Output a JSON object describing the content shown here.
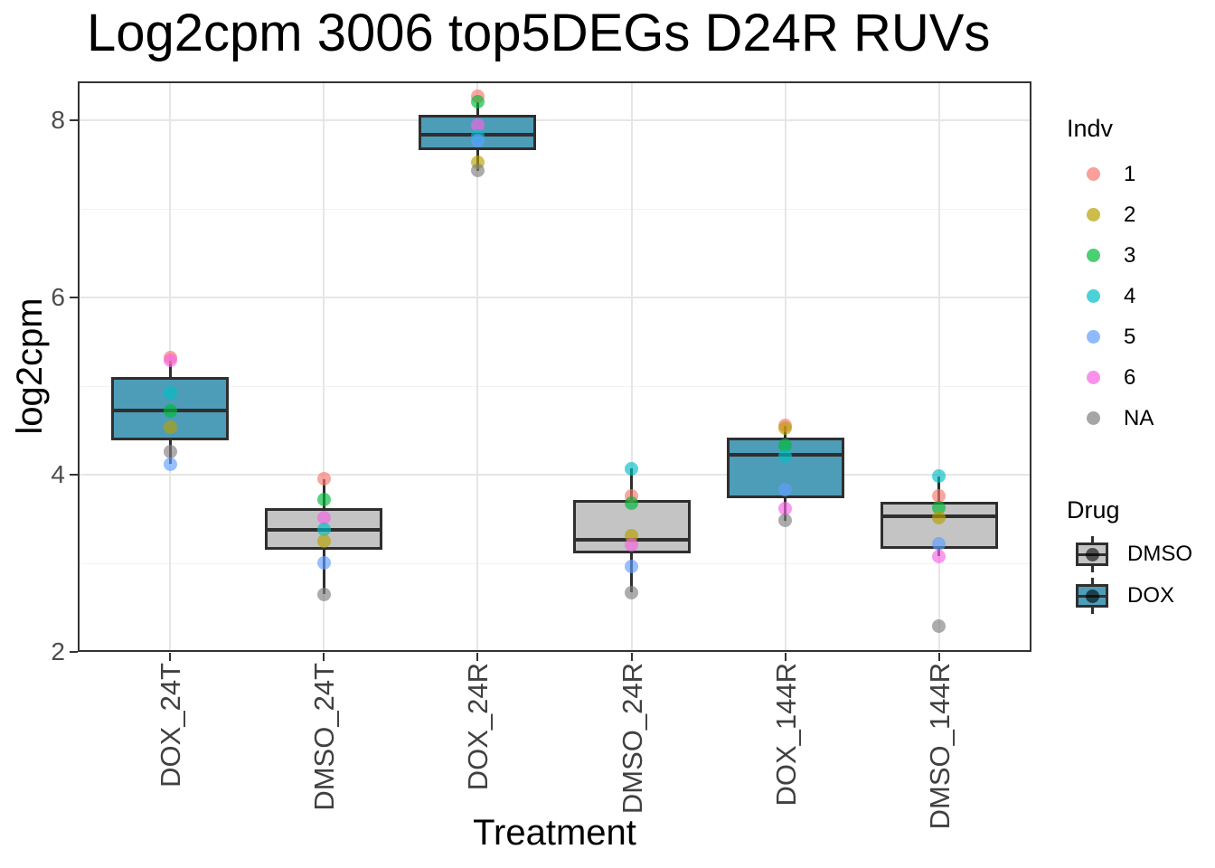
{
  "chart_data": {
    "type": "boxplot",
    "title": "Log2cpm 3006 top5DEGs D24R RUVs",
    "xlabel": "Treatment",
    "ylabel": "log2cpm",
    "y_ticks": [
      2,
      4,
      6,
      8
    ],
    "y_minor_ticks": [
      3,
      5,
      7
    ],
    "y_domain": [
      2.0,
      8.44
    ],
    "categories": [
      "DOX_24T",
      "DMSO_24T",
      "DOX_24R",
      "DMSO_24R",
      "DOX_144R",
      "DMSO_144R"
    ],
    "boxes": [
      {
        "treatment": "DOX_24T",
        "drug": "DOX",
        "whisker_low": 4.12,
        "q1": 4.39,
        "median": 4.72,
        "q3": 5.1,
        "whisker_high": 5.29,
        "points": [
          {
            "indv": "1",
            "value": 5.32
          },
          {
            "indv": "6",
            "value": 5.29
          },
          {
            "indv": "4",
            "value": 4.92
          },
          {
            "indv": "3",
            "value": 4.72
          },
          {
            "indv": "2",
            "value": 4.54
          },
          {
            "indv": "NA",
            "value": 4.26
          },
          {
            "indv": "5",
            "value": 4.12
          }
        ]
      },
      {
        "treatment": "DMSO_24T",
        "drug": "DMSO",
        "whisker_low": 2.65,
        "q1": 3.15,
        "median": 3.38,
        "q3": 3.62,
        "whisker_high": 3.95,
        "points": [
          {
            "indv": "1",
            "value": 3.95
          },
          {
            "indv": "3",
            "value": 3.72
          },
          {
            "indv": "6",
            "value": 3.52
          },
          {
            "indv": "4",
            "value": 3.38
          },
          {
            "indv": "2",
            "value": 3.25
          },
          {
            "indv": "5",
            "value": 3.01
          },
          {
            "indv": "NA",
            "value": 2.65
          }
        ]
      },
      {
        "treatment": "DOX_24R",
        "drug": "DOX",
        "whisker_low": 7.43,
        "q1": 7.66,
        "median": 7.84,
        "q3": 8.06,
        "whisker_high": 8.21,
        "points": [
          {
            "indv": "1",
            "value": 8.27
          },
          {
            "indv": "3",
            "value": 8.21
          },
          {
            "indv": "6",
            "value": 7.95
          },
          {
            "indv": "4",
            "value": 7.82
          },
          {
            "indv": "5",
            "value": 7.77
          },
          {
            "indv": "2",
            "value": 7.53
          },
          {
            "indv": "NA",
            "value": 7.43
          }
        ]
      },
      {
        "treatment": "DMSO_24R",
        "drug": "DMSO",
        "whisker_low": 2.67,
        "q1": 3.11,
        "median": 3.27,
        "q3": 3.71,
        "whisker_high": 4.07,
        "points": [
          {
            "indv": "4",
            "value": 4.07
          },
          {
            "indv": "1",
            "value": 3.76
          },
          {
            "indv": "3",
            "value": 3.68
          },
          {
            "indv": "2",
            "value": 3.31
          },
          {
            "indv": "6",
            "value": 3.21
          },
          {
            "indv": "5",
            "value": 2.96
          },
          {
            "indv": "NA",
            "value": 2.67
          }
        ]
      },
      {
        "treatment": "DOX_144R",
        "drug": "DOX",
        "whisker_low": 3.48,
        "q1": 3.73,
        "median": 4.23,
        "q3": 4.42,
        "whisker_high": 4.55,
        "points": [
          {
            "indv": "1",
            "value": 4.56
          },
          {
            "indv": "2",
            "value": 4.53
          },
          {
            "indv": "3",
            "value": 4.33
          },
          {
            "indv": "4",
            "value": 4.21
          },
          {
            "indv": "5",
            "value": 3.83
          },
          {
            "indv": "6",
            "value": 3.62
          },
          {
            "indv": "NA",
            "value": 3.48
          }
        ]
      },
      {
        "treatment": "DMSO_144R",
        "drug": "DMSO",
        "whisker_low": 3.08,
        "q1": 3.16,
        "median": 3.53,
        "q3": 3.69,
        "whisker_high": 3.98,
        "points": [
          {
            "indv": "4",
            "value": 3.98
          },
          {
            "indv": "1",
            "value": 3.76
          },
          {
            "indv": "3",
            "value": 3.63
          },
          {
            "indv": "2",
            "value": 3.52
          },
          {
            "indv": "5",
            "value": 3.22
          },
          {
            "indv": "6",
            "value": 3.08
          }
        ],
        "outliers": [
          {
            "indv": "NA",
            "value": 2.29
          }
        ]
      }
    ]
  },
  "legend": {
    "indv": {
      "title": "Indv",
      "items": [
        {
          "label": "1",
          "color": "#F8766D"
        },
        {
          "label": "2",
          "color": "#B79F00"
        },
        {
          "label": "3",
          "color": "#00BA38"
        },
        {
          "label": "4",
          "color": "#00BFC4"
        },
        {
          "label": "5",
          "color": "#619CFF"
        },
        {
          "label": "6",
          "color": "#F564E3"
        },
        {
          "label": "NA",
          "color": "#7F7F7F"
        }
      ]
    },
    "drug": {
      "title": "Drug",
      "items": [
        {
          "label": "DMSO",
          "fill": "#C4C4C4"
        },
        {
          "label": "DOX",
          "fill": "#4D9DB8"
        }
      ]
    }
  },
  "style": {
    "point_alpha": 0.65,
    "box_border": "#2F2F2F",
    "panel_border": "#333333",
    "grid_major": "#E6E6E6",
    "grid_minor": "#F2F2F2",
    "axis_text": "#4D4D4D",
    "background": "#FFFFFF"
  }
}
